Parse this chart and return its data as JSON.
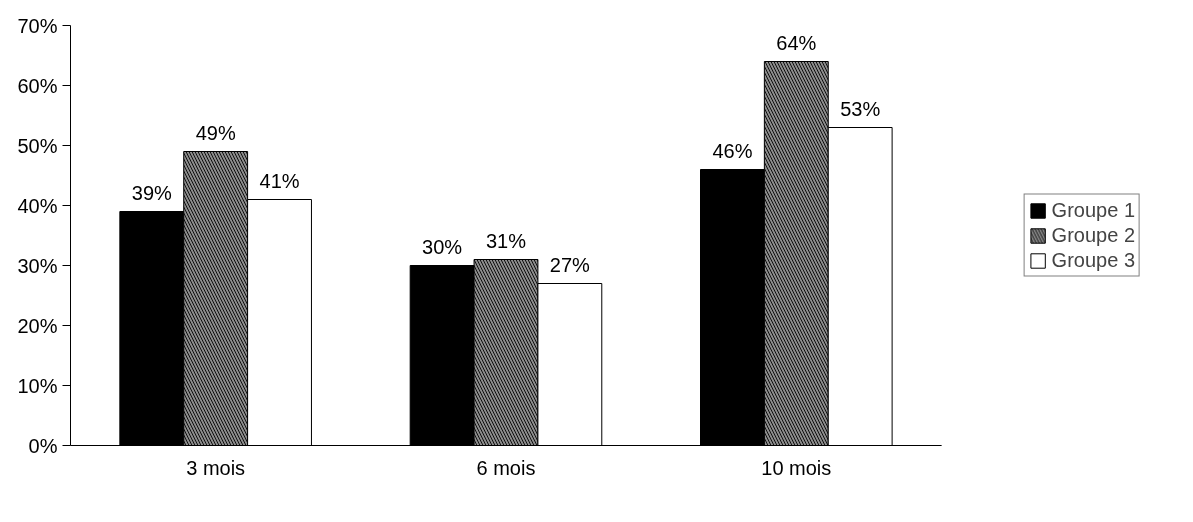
{
  "chart_data": {
    "type": "bar",
    "categories": [
      "3 mois",
      "6 mois",
      "10 mois"
    ],
    "series": [
      {
        "name": "Groupe 1",
        "color": "#000000",
        "values": [
          39,
          30,
          46
        ],
        "value_labels": [
          "39%",
          "30%",
          "46%"
        ]
      },
      {
        "name": "Groupe 2",
        "color": "#8c8c8c",
        "values": [
          49,
          31,
          64
        ],
        "value_labels": [
          "49%",
          "31%",
          "64%"
        ]
      },
      {
        "name": "Groupe 3",
        "color": "#ffffff",
        "values": [
          41,
          27,
          53
        ],
        "value_labels": [
          "41%",
          "27%",
          "53%"
        ]
      }
    ],
    "ylim": [
      0,
      70
    ],
    "yticks": [
      {
        "value": 0,
        "label": "0%"
      },
      {
        "value": 10,
        "label": "10%"
      },
      {
        "value": 20,
        "label": "20%"
      },
      {
        "value": 30,
        "label": "30%"
      },
      {
        "value": 40,
        "label": "40%"
      },
      {
        "value": 50,
        "label": "50%"
      },
      {
        "value": 60,
        "label": "60%"
      },
      {
        "value": 70,
        "label": "70%"
      }
    ],
    "grid": false,
    "legend": "right"
  }
}
